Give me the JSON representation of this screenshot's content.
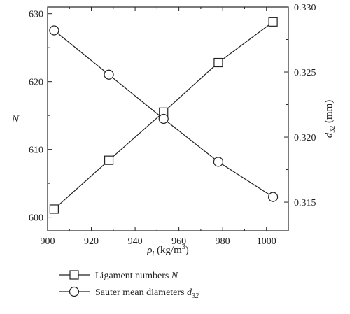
{
  "chart_data": {
    "type": "line",
    "x": [
      903,
      928,
      953,
      978,
      1003
    ],
    "xlabel": {
      "main": "ρ",
      "sub": "l",
      "rest": " (kg/m",
      "sup": "3",
      "close": ")"
    },
    "xlim": [
      900,
      1010
    ],
    "xticks": [
      "900",
      "920",
      "940",
      "960",
      "980",
      "1000"
    ],
    "y_left": {
      "label": "N",
      "lim": [
        598,
        631
      ],
      "ticks": [
        "600",
        "610",
        "620",
        "630"
      ]
    },
    "y_right": {
      "label": {
        "main": "d",
        "sub": "32",
        "rest": " (mm)"
      },
      "lim": [
        0.3128,
        0.33
      ],
      "ticks": [
        "0.315",
        "0.320",
        "0.325",
        "0.330"
      ]
    },
    "series": [
      {
        "name": "Ligament numbers N",
        "legend": {
          "text": "Ligament numbers ",
          "italic": "N",
          "sub": ""
        },
        "axis": "left",
        "marker": "square",
        "values": [
          601.2,
          608.4,
          615.5,
          622.8,
          628.8
        ]
      },
      {
        "name": "Sauter mean diameters d32",
        "legend": {
          "text": "Sauter mean diameters ",
          "italic": "d",
          "sub": "32"
        },
        "axis": "right",
        "marker": "circle",
        "values": [
          0.3282,
          0.3248,
          0.3214,
          0.3181,
          0.3154
        ]
      }
    ],
    "grid": false,
    "legend_position": "bottom-left"
  }
}
